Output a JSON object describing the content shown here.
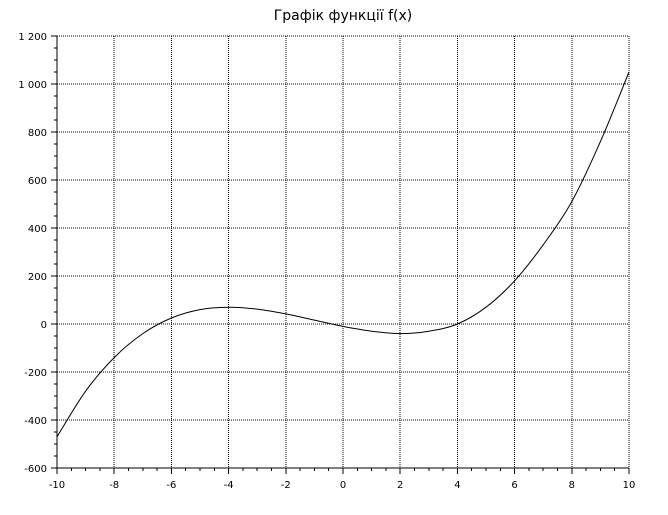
{
  "chart_data": {
    "type": "line",
    "title": "Графік функції f(x)",
    "xlabel": "",
    "ylabel": "",
    "xlim": [
      -10,
      10
    ],
    "ylim": [
      -600,
      1200
    ],
    "grid": true,
    "x_ticks": [
      -10,
      -8,
      -6,
      -4,
      -2,
      0,
      2,
      4,
      6,
      8,
      10
    ],
    "x_tick_labels": [
      "-10",
      "-8",
      "-6",
      "-4",
      "-2",
      "0",
      "2",
      "4",
      "6",
      "8",
      "10"
    ],
    "y_ticks": [
      -600,
      -400,
      -200,
      0,
      200,
      400,
      600,
      800,
      1000,
      1200
    ],
    "y_tick_labels": [
      "-600",
      "-400",
      "-200",
      "0",
      "200",
      "400",
      "600",
      "800",
      "1 000",
      "1 200"
    ],
    "series": [
      {
        "x": [
          -10,
          -9,
          -8,
          -7,
          -6,
          -5,
          -4,
          -3,
          -2,
          -1,
          0,
          1,
          2,
          3,
          4,
          5,
          6,
          7,
          8,
          9,
          10
        ],
        "y": [
          -470,
          -280,
          -140,
          -40,
          25,
          60,
          70,
          62,
          42,
          16,
          -10,
          -30,
          -40,
          -30,
          0,
          70,
          180,
          330,
          510,
          760,
          1050
        ],
        "color": "#000000"
      }
    ]
  }
}
